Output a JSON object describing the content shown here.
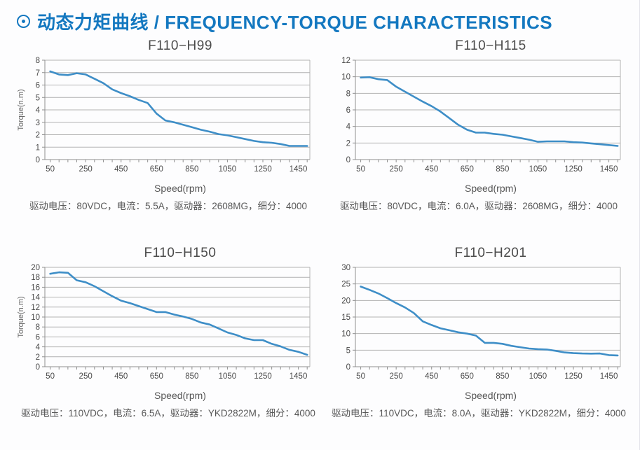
{
  "header": {
    "icon": "circle-dot",
    "title": "动态力矩曲线 / FREQUENCY-TORQUE CHARACTERISTICS"
  },
  "colors": {
    "accent_blue": "#1478c0",
    "curve_blue": "#3e8ec7",
    "grid_gray": "#b2b2b2",
    "axis_gray": "#8f8f8f",
    "tick_text": "#4a4a4a",
    "label_text": "#666666"
  },
  "chart_data": [
    {
      "type": "line",
      "title": "F110−H99",
      "xlabel": "Speed(rpm)",
      "ylabel": "Torque(n.m)",
      "ylabel_visible": true,
      "caption": "驱动电压：80VDC，电流：5.5A，驱动器：2608MG，细分：4000",
      "xlim": [
        20,
        1515
      ],
      "ylim": [
        0,
        8
      ],
      "ytick_step": 1,
      "xtick_minor_step": 50,
      "xticks_labeled": [
        50,
        250,
        450,
        650,
        850,
        1050,
        1250,
        1450
      ],
      "x": [
        50,
        100,
        150,
        200,
        250,
        300,
        350,
        400,
        450,
        500,
        550,
        600,
        650,
        700,
        750,
        800,
        850,
        900,
        950,
        1000,
        1050,
        1100,
        1150,
        1200,
        1250,
        1300,
        1350,
        1400,
        1450,
        1500
      ],
      "values": [
        7.1,
        6.85,
        6.8,
        6.95,
        6.85,
        6.5,
        6.15,
        5.65,
        5.35,
        5.1,
        4.8,
        4.55,
        3.7,
        3.15,
        3.0,
        2.8,
        2.6,
        2.4,
        2.25,
        2.05,
        1.95,
        1.8,
        1.65,
        1.5,
        1.4,
        1.35,
        1.25,
        1.1,
        1.1,
        1.1
      ]
    },
    {
      "type": "line",
      "title": "F110−H115",
      "xlabel": "Speed(rpm)",
      "ylabel": "Torque(n.m)",
      "ylabel_visible": false,
      "caption": "驱动电压：80VDC，电流：6.0A，驱动器：2608MG，细分：4000",
      "xlim": [
        20,
        1515
      ],
      "ylim": [
        0,
        12
      ],
      "ytick_step": 2,
      "xtick_minor_step": 50,
      "xticks_labeled": [
        50,
        250,
        450,
        650,
        850,
        1050,
        1250,
        1450
      ],
      "x": [
        50,
        100,
        150,
        200,
        250,
        300,
        350,
        400,
        450,
        500,
        550,
        600,
        650,
        700,
        750,
        800,
        850,
        900,
        950,
        1000,
        1050,
        1100,
        1150,
        1200,
        1250,
        1300,
        1350,
        1400,
        1450,
        1500
      ],
      "values": [
        9.9,
        9.95,
        9.7,
        9.6,
        8.8,
        8.2,
        7.6,
        7.0,
        6.45,
        5.8,
        5.0,
        4.2,
        3.6,
        3.25,
        3.25,
        3.1,
        3.0,
        2.8,
        2.6,
        2.4,
        2.15,
        2.2,
        2.2,
        2.2,
        2.1,
        2.05,
        1.95,
        1.85,
        1.75,
        1.65
      ]
    },
    {
      "type": "line",
      "title": "F110−H150",
      "xlabel": "Speed(rpm)",
      "ylabel": "Torque(n.m)",
      "ylabel_visible": true,
      "caption": "驱动电压：110VDC，电流：6.5A，驱动器：YKD2822M，细分：4000",
      "xlim": [
        20,
        1515
      ],
      "ylim": [
        0,
        20
      ],
      "ytick_step": 2,
      "xtick_minor_step": 50,
      "xticks_labeled": [
        50,
        250,
        450,
        650,
        850,
        1050,
        1250,
        1450
      ],
      "x": [
        50,
        100,
        150,
        200,
        250,
        300,
        350,
        400,
        450,
        500,
        550,
        600,
        650,
        700,
        750,
        800,
        850,
        900,
        950,
        1000,
        1050,
        1100,
        1150,
        1200,
        1250,
        1300,
        1350,
        1400,
        1450,
        1500
      ],
      "values": [
        18.7,
        19.0,
        18.9,
        17.4,
        17.0,
        16.2,
        15.2,
        14.2,
        13.3,
        12.8,
        12.2,
        11.6,
        11.0,
        11.0,
        10.5,
        10.1,
        9.6,
        8.9,
        8.5,
        7.7,
        6.9,
        6.4,
        5.7,
        5.35,
        5.35,
        4.6,
        4.1,
        3.4,
        3.0,
        2.4
      ]
    },
    {
      "type": "line",
      "title": "F110−H201",
      "xlabel": "Speed(rpm)",
      "ylabel": "Torque(n.m)",
      "ylabel_visible": false,
      "caption": "驱动电压：110VDC，电流：8.0A，驱动器：YKD2822M，细分：4000",
      "xlim": [
        20,
        1515
      ],
      "ylim": [
        0,
        30
      ],
      "ytick_step": 5,
      "xtick_minor_step": 50,
      "xticks_labeled": [
        50,
        250,
        450,
        650,
        850,
        1050,
        1250,
        1450
      ],
      "x": [
        50,
        100,
        150,
        200,
        250,
        300,
        350,
        400,
        450,
        500,
        550,
        600,
        650,
        700,
        750,
        800,
        850,
        900,
        950,
        1000,
        1050,
        1100,
        1150,
        1200,
        1250,
        1300,
        1350,
        1400,
        1450,
        1500
      ],
      "values": [
        24.2,
        23.2,
        22.1,
        20.7,
        19.2,
        17.9,
        16.2,
        13.7,
        12.6,
        11.6,
        11.0,
        10.4,
        10.0,
        9.4,
        7.2,
        7.2,
        6.9,
        6.3,
        5.9,
        5.5,
        5.3,
        5.2,
        4.8,
        4.3,
        4.1,
        4.0,
        3.95,
        4.0,
        3.5,
        3.4
      ]
    }
  ]
}
